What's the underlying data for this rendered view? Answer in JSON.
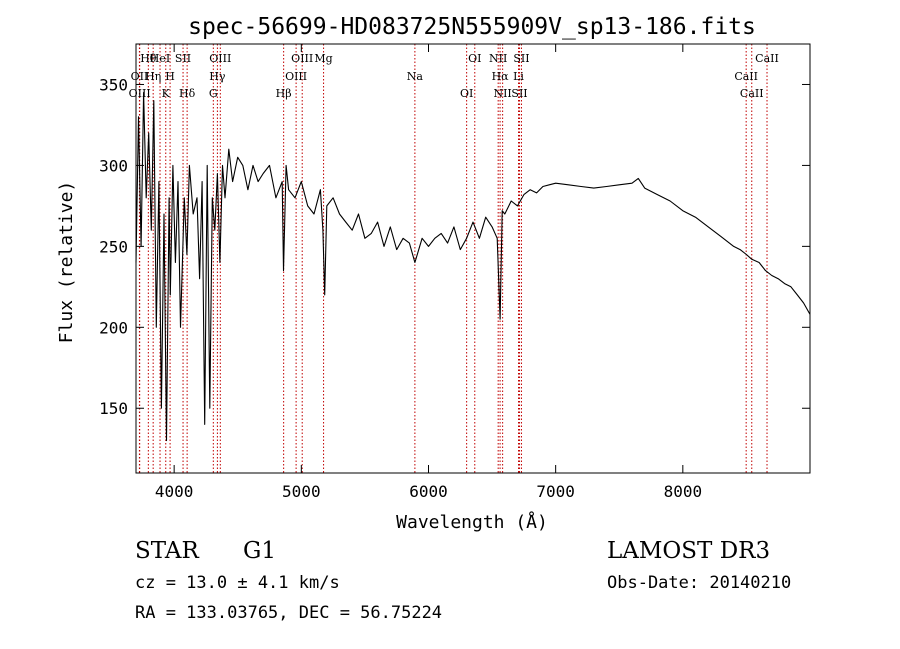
{
  "chart_data": {
    "type": "line",
    "title": "spec-56699-HD083725N555909V_sp13-186.fits",
    "xlabel": "Wavelength (Å)",
    "ylabel": "Flux (relative)",
    "xlim": [
      3700,
      9000
    ],
    "ylim": [
      110,
      375
    ],
    "xticks": [
      4000,
      5000,
      6000,
      7000,
      8000
    ],
    "yticks": [
      150,
      200,
      250,
      300,
      350
    ],
    "series": [
      {
        "name": "flux",
        "x": [
          3700,
          3720,
          3740,
          3760,
          3780,
          3800,
          3820,
          3840,
          3860,
          3880,
          3900,
          3920,
          3940,
          3960,
          3970,
          3990,
          4010,
          4030,
          4050,
          4080,
          4100,
          4120,
          4150,
          4180,
          4200,
          4220,
          4240,
          4260,
          4280,
          4300,
          4320,
          4340,
          4360,
          4380,
          4400,
          4430,
          4460,
          4500,
          4540,
          4580,
          4620,
          4660,
          4700,
          4750,
          4800,
          4850,
          4860,
          4880,
          4900,
          4950,
          5000,
          5050,
          5100,
          5150,
          5170,
          5184,
          5200,
          5250,
          5300,
          5350,
          5400,
          5450,
          5500,
          5550,
          5600,
          5650,
          5700,
          5750,
          5800,
          5850,
          5893,
          5950,
          6000,
          6050,
          6100,
          6150,
          6200,
          6250,
          6300,
          6350,
          6400,
          6450,
          6500,
          6540,
          6563,
          6580,
          6600,
          6650,
          6700,
          6750,
          6800,
          6850,
          6900,
          6950,
          7000,
          7100,
          7200,
          7300,
          7400,
          7500,
          7600,
          7650,
          7700,
          7800,
          7900,
          8000,
          8100,
          8200,
          8300,
          8400,
          8450,
          8500,
          8542,
          8600,
          8650,
          8700,
          8750,
          8800,
          8850,
          8900,
          8950,
          9000
        ],
        "values": [
          240,
          330,
          250,
          345,
          280,
          320,
          260,
          340,
          200,
          290,
          150,
          270,
          130,
          280,
          220,
          300,
          240,
          290,
          200,
          280,
          245,
          300,
          270,
          280,
          230,
          290,
          140,
          300,
          150,
          280,
          260,
          295,
          240,
          300,
          280,
          310,
          290,
          305,
          300,
          285,
          300,
          290,
          295,
          300,
          280,
          290,
          235,
          300,
          285,
          280,
          290,
          275,
          270,
          285,
          260,
          220,
          275,
          280,
          270,
          265,
          260,
          270,
          255,
          258,
          265,
          250,
          262,
          248,
          255,
          252,
          240,
          255,
          250,
          255,
          258,
          252,
          262,
          248,
          255,
          265,
          255,
          268,
          262,
          255,
          205,
          272,
          270,
          278,
          275,
          282,
          285,
          283,
          287,
          288,
          289,
          288,
          287,
          286,
          287,
          288,
          289,
          292,
          286,
          282,
          278,
          272,
          268,
          262,
          256,
          250,
          248,
          245,
          242,
          240,
          235,
          232,
          230,
          227,
          225,
          220,
          215,
          208
        ]
      }
    ],
    "lines": [
      {
        "label": "Hθ",
        "x": 3797
      },
      {
        "label": "OII",
        "x": 3727
      },
      {
        "label": "OIII",
        "x": 3729
      },
      {
        "label": "HeI",
        "x": 3889
      },
      {
        "label": "Hη",
        "x": 3835
      },
      {
        "label": "K",
        "x": 3934
      },
      {
        "label": "SII",
        "x": 4070
      },
      {
        "label": "H",
        "x": 3968
      },
      {
        "label": "Hδ",
        "x": 4102
      },
      {
        "label": "OIII",
        "x": 4363
      },
      {
        "label": "Hγ",
        "x": 4340
      },
      {
        "label": "G",
        "x": 4308
      },
      {
        "label": "OIII",
        "x": 5007
      },
      {
        "label": "OIII",
        "x": 4959
      },
      {
        "label": "Hβ",
        "x": 4861
      },
      {
        "label": "Mg",
        "x": 5175
      },
      {
        "label": "Na",
        "x": 5893
      },
      {
        "label": "OI",
        "x": 6300
      },
      {
        "label": "OI",
        "x": 6364
      },
      {
        "label": "Hα",
        "x": 6563
      },
      {
        "label": "SII",
        "x": 6716
      },
      {
        "label": "NII",
        "x": 6548
      },
      {
        "label": "Li",
        "x": 6708
      },
      {
        "label": "NII",
        "x": 6583
      },
      {
        "label": "SII",
        "x": 6731
      },
      {
        "label": "CaII",
        "x": 8498
      },
      {
        "label": "CaII",
        "x": 8542
      },
      {
        "label": "CaII",
        "x": 8662
      }
    ]
  },
  "info": {
    "class_label": "STAR",
    "subclass": "G1",
    "survey": "LAMOST DR3",
    "redshift": "cz = 13.0 ± 4.1 km/s",
    "obs_date": "Obs-Date: 20140210",
    "coords": "RA = 133.03765, DEC =  56.75224"
  },
  "colors": {
    "line": "#c00000",
    "spectrum": "#000000"
  }
}
